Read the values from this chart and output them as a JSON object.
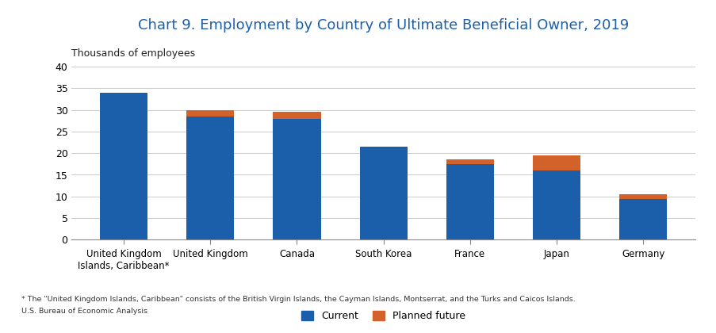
{
  "title": "Chart 9. Employment by Country of Ultimate Beneficial Owner, 2019",
  "ylabel": "Thousands of employees",
  "categories": [
    "United Kingdom\nIslands, Caribbean*",
    "United Kingdom",
    "Canada",
    "South Korea",
    "France",
    "Japan",
    "Germany"
  ],
  "current": [
    34.0,
    28.5,
    28.0,
    21.5,
    17.5,
    16.0,
    9.5
  ],
  "planned_future": [
    0.0,
    1.5,
    1.5,
    0.0,
    1.0,
    3.5,
    1.0
  ],
  "color_current": "#1b5faa",
  "color_planned": "#d2612a",
  "ylim": [
    0,
    40
  ],
  "yticks": [
    0,
    5,
    10,
    15,
    20,
    25,
    30,
    35,
    40
  ],
  "footnote1": "* The \"United Kingdom Islands, Caribbean\" consists of the British Virgin Islands, the Cayman Islands, Montserrat, and the Turks and Caicos Islands.",
  "footnote2": "U.S. Bureau of Economic Analysis",
  "legend_labels": [
    "Current",
    "Planned future"
  ],
  "title_color": "#1b5faa",
  "ylabel_fontsize": 9,
  "title_fontsize": 13,
  "tick_fontsize": 9,
  "xtick_fontsize": 8.5
}
